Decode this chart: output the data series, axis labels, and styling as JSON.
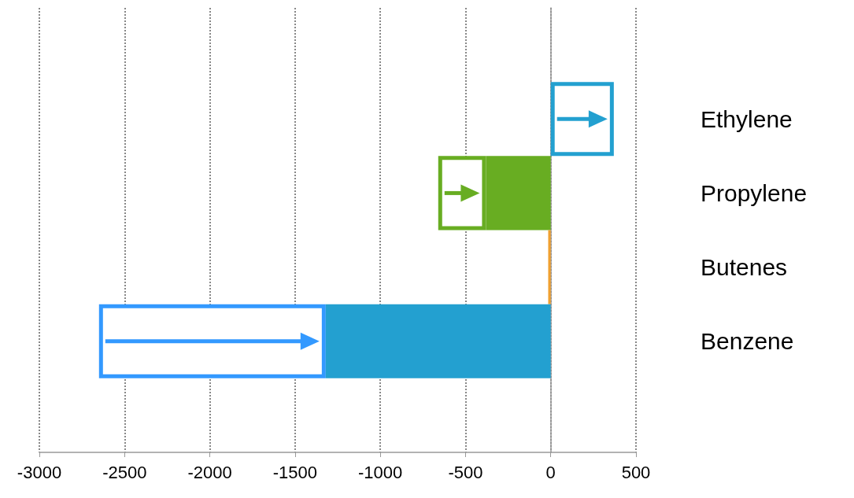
{
  "chart_data": {
    "type": "bar",
    "orientation": "horizontal",
    "categories": [
      null,
      "Ethylene",
      "Propylene",
      "Butenes",
      "Benzene",
      null
    ],
    "series": [
      {
        "colors": [
          null,
          null,
          "#68ad22",
          "#f0a030",
          "#23a0d0",
          null
        ],
        "values": [
          null,
          null,
          -380,
          -15,
          -1320,
          null
        ]
      },
      {
        "colors": [
          null,
          "#23a0d0",
          "#68ad22",
          null,
          "#3399ff",
          null
        ],
        "base": [
          null,
          0,
          -660,
          null,
          -2650,
          null
        ],
        "values": [
          null,
          370,
          280,
          null,
          1330,
          null
        ]
      }
    ],
    "xlim": [
      -3000,
      500
    ],
    "xticks": [
      -3000,
      -2500,
      -2000,
      -1500,
      -1000,
      -500,
      0,
      500
    ],
    "grid": "x"
  }
}
